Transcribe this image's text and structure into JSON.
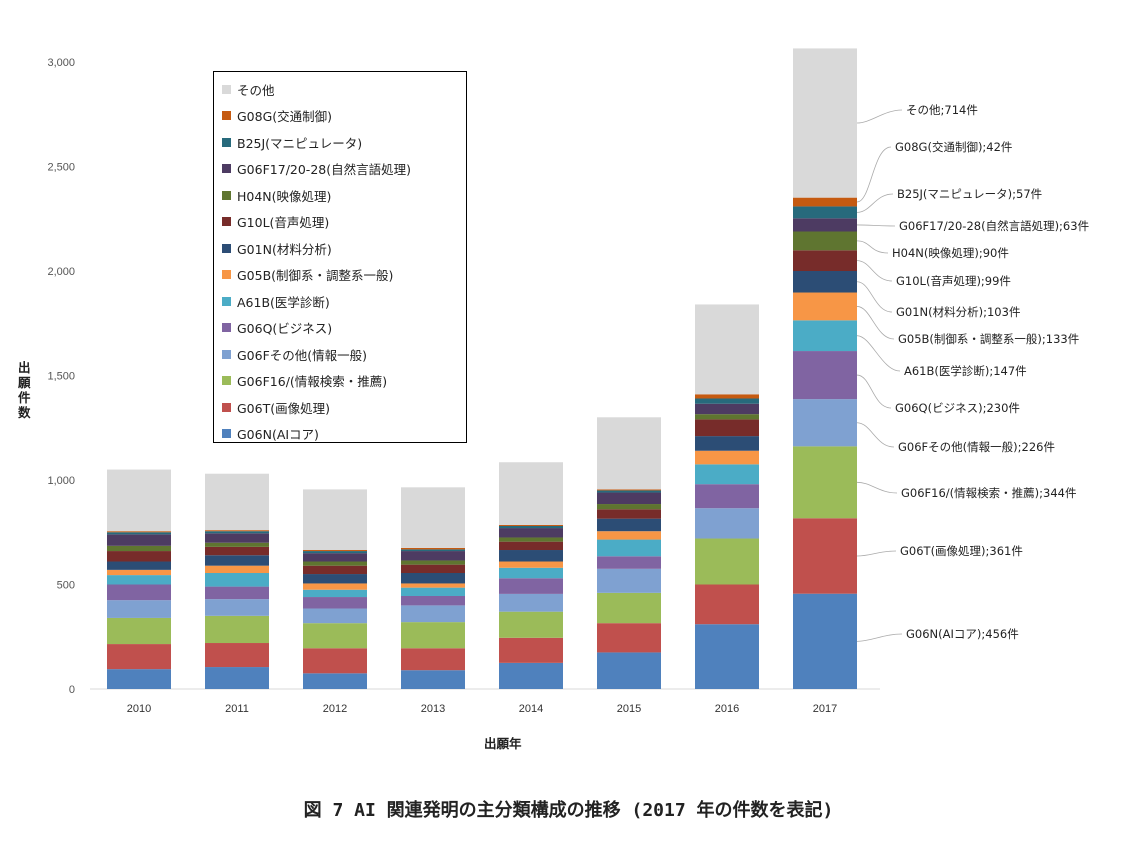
{
  "chart_data": {
    "type": "bar",
    "stacked": true,
    "categories": [
      "2010",
      "2011",
      "2012",
      "2013",
      "2014",
      "2015",
      "2016",
      "2017"
    ],
    "ylim": [
      0,
      3000
    ],
    "yticks": [
      "0",
      "500",
      "1,000",
      "1,500",
      "2,000",
      "2,500",
      "3,000"
    ],
    "xlabel": "出願年",
    "ylabel": "出願件数",
    "legend_position": "upper-left",
    "grid": false,
    "series": [
      {
        "name": "G06N(AIコア)",
        "color": "#4f81bd",
        "values": [
          95,
          105,
          75,
          90,
          125,
          175,
          310,
          456
        ],
        "label_2017": "G06N(AIコア);456件"
      },
      {
        "name": "G06T(画像処理)",
        "color": "#c0504d",
        "values": [
          120,
          115,
          120,
          105,
          120,
          140,
          190,
          361
        ],
        "label_2017": "G06T(画像処理);361件"
      },
      {
        "name": "G06F16/(情報検索・推薦)",
        "color": "#9bbb59",
        "values": [
          125,
          130,
          120,
          125,
          125,
          145,
          220,
          344
        ],
        "label_2017": "G06F16/(情報検索・推薦);344件"
      },
      {
        "name": "G06Fその他(情報一般)",
        "color": "#7fa1d1",
        "values": [
          85,
          80,
          70,
          80,
          85,
          115,
          145,
          226
        ],
        "label_2017": "G06Fその他(情報一般);226件"
      },
      {
        "name": "G06Q(ビジネス)",
        "color": "#8064a2",
        "values": [
          75,
          60,
          55,
          45,
          75,
          60,
          115,
          230
        ],
        "label_2017": "G06Q(ビジネス);230件"
      },
      {
        "name": "A61B(医学診断)",
        "color": "#4bacc6",
        "values": [
          45,
          65,
          35,
          40,
          50,
          80,
          95,
          147
        ],
        "label_2017": "A61B(医学診断);147件"
      },
      {
        "name": "G05B(制御系・調整系一般)",
        "color": "#f79646",
        "values": [
          25,
          35,
          30,
          20,
          30,
          40,
          65,
          133
        ],
        "label_2017": "G05B(制御系・調整系一般);133件"
      },
      {
        "name": "G01N(材料分析)",
        "color": "#2c4d75",
        "values": [
          40,
          50,
          45,
          50,
          55,
          60,
          70,
          103
        ],
        "label_2017": "G01N(材料分析);103件"
      },
      {
        "name": "G10L(音声処理)",
        "color": "#772c2a",
        "values": [
          50,
          40,
          40,
          40,
          40,
          45,
          80,
          99
        ],
        "label_2017": "G10L(音声処理);99件"
      },
      {
        "name": "H04N(映像処理)",
        "color": "#5f7530",
        "values": [
          25,
          20,
          20,
          20,
          20,
          25,
          25,
          90
        ],
        "label_2017": "H04N(映像処理);90件"
      },
      {
        "name": "G06F17/20-28(自然言語処理)",
        "color": "#4d3b62",
        "values": [
          55,
          45,
          40,
          45,
          45,
          55,
          50,
          63
        ],
        "label_2017": "G06F17/20-28(自然言語処理);63件"
      },
      {
        "name": "B25J(マニピュレータ)",
        "color": "#276a7c",
        "values": [
          10,
          10,
          10,
          8,
          10,
          10,
          25,
          57
        ],
        "label_2017": "B25J(マニピュレータ);57件"
      },
      {
        "name": "G08G(交通制御)",
        "color": "#c55a11",
        "values": [
          5,
          5,
          5,
          7,
          5,
          5,
          20,
          42
        ],
        "label_2017": "G08G(交通制御);42件"
      },
      {
        "name": "その他",
        "color": "#d9d9d9",
        "values": [
          295,
          270,
          290,
          290,
          300,
          345,
          430,
          714
        ],
        "label_2017": "その他;714件"
      }
    ]
  },
  "caption": "図 7  AI 関連発明の主分類構成の推移 (2017 年の件数を表記)"
}
